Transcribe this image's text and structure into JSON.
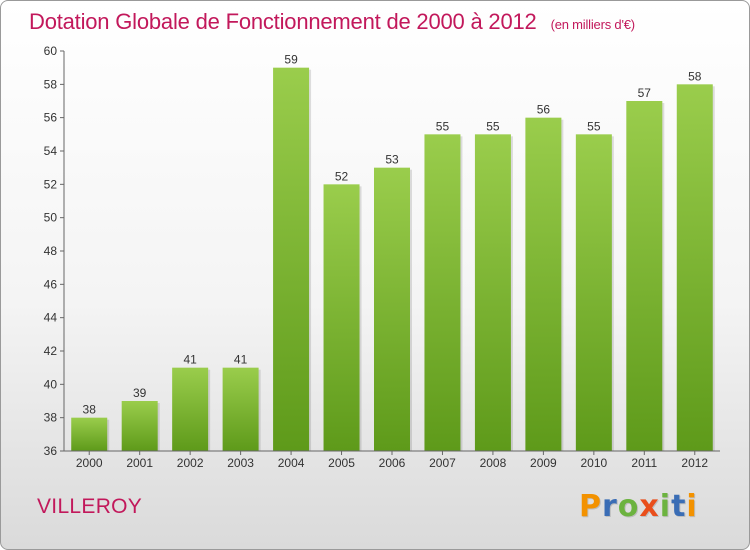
{
  "title": "Dotation Globale de Fonctionnement de 2000 à 2012",
  "unit": "(en milliers d'€)",
  "town": "VILLEROY",
  "logo": {
    "text": "Proxiti",
    "letter_colors": [
      "#f39200",
      "#3a6db5",
      "#6cb33f",
      "#e94e1b",
      "#6cb33f",
      "#3a6db5",
      "#f39200"
    ]
  },
  "colors": {
    "title": "#c2185b",
    "bar_top": "#9acd4c",
    "bar_bottom": "#5e9a1a"
  },
  "chart_data": {
    "type": "bar",
    "categories": [
      "2000",
      "2001",
      "2002",
      "2003",
      "2004",
      "2005",
      "2006",
      "2007",
      "2008",
      "2009",
      "2010",
      "2011",
      "2012"
    ],
    "values": [
      38,
      39,
      41,
      41,
      59,
      52,
      53,
      55,
      55,
      56,
      55,
      57,
      58
    ],
    "title": "Dotation Globale de Fonctionnement de 2000 à 2012",
    "xlabel": "",
    "ylabel": "",
    "ylim": [
      36,
      60
    ],
    "yticks": [
      36,
      38,
      40,
      42,
      44,
      46,
      48,
      50,
      52,
      54,
      56,
      58,
      60
    ],
    "grid": false
  }
}
